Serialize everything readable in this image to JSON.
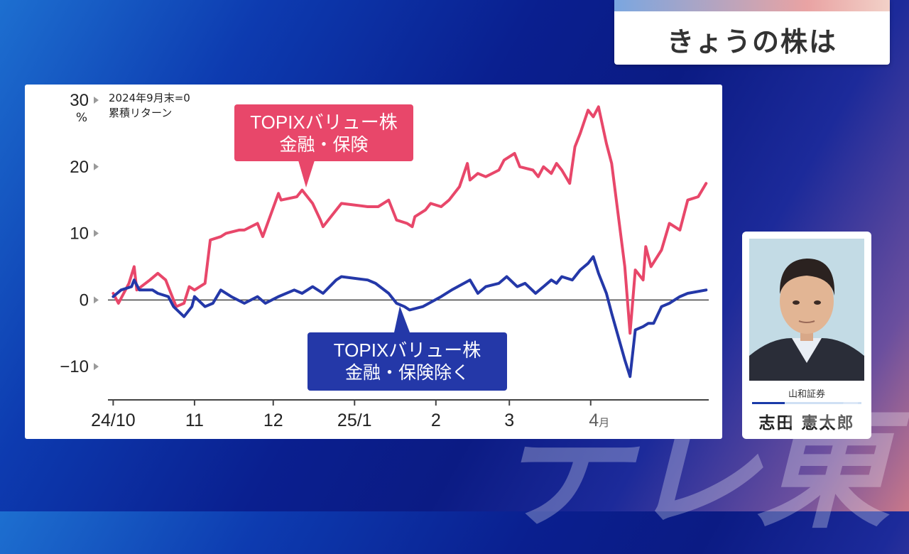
{
  "header": {
    "title": "きょうの株は"
  },
  "person": {
    "company": "山和証券",
    "name": "志田 憲太郎"
  },
  "watermark": "テレ東",
  "colors": {
    "value_financial": "#e8476a",
    "value_ex_financial": "#2438a8"
  },
  "chart_data": {
    "type": "line",
    "note_line1": "2024年9月末=0",
    "note_line2": "累積リターン",
    "y_unit": "%",
    "y_ticks": [
      "30",
      "20",
      "10",
      "0",
      "−10"
    ],
    "x_ticks": [
      "24/10",
      "11",
      "12",
      "25/1",
      "2",
      "3",
      "4月"
    ],
    "ylim": [
      -15,
      30
    ],
    "callout_red": {
      "line1": "TOPIXバリュー株",
      "line2": "金融・保険"
    },
    "callout_blue": {
      "line1": "TOPIXバリュー株",
      "line2": "金融・保険除く"
    },
    "series": [
      {
        "name": "TOPIXバリュー株 金融・保険",
        "points": [
          [
            "2024-10-01",
            1.0
          ],
          [
            "2024-10-03",
            -0.5
          ],
          [
            "2024-10-07",
            2.5
          ],
          [
            "2024-10-09",
            5.0
          ],
          [
            "2024-10-10",
            1.5
          ],
          [
            "2024-10-15",
            3.0
          ],
          [
            "2024-10-18",
            4.0
          ],
          [
            "2024-10-21",
            3.0
          ],
          [
            "2024-10-22",
            2.0
          ],
          [
            "2024-10-25",
            -1.0
          ],
          [
            "2024-10-28",
            -0.5
          ],
          [
            "2024-10-30",
            2.0
          ],
          [
            "2024-11-01",
            1.5
          ],
          [
            "2024-11-05",
            2.5
          ],
          [
            "2024-11-07",
            9.0
          ],
          [
            "2024-11-11",
            9.5
          ],
          [
            "2024-11-13",
            10.0
          ],
          [
            "2024-11-18",
            10.5
          ],
          [
            "2024-11-20",
            10.5
          ],
          [
            "2024-11-25",
            11.5
          ],
          [
            "2024-11-27",
            9.5
          ],
          [
            "2024-12-03",
            16.0
          ],
          [
            "2024-12-04",
            15.0
          ],
          [
            "2024-12-10",
            15.5
          ],
          [
            "2024-12-12",
            16.5
          ],
          [
            "2024-12-16",
            14.5
          ],
          [
            "2024-12-19",
            12.0
          ],
          [
            "2024-12-20",
            11.0
          ],
          [
            "2024-12-24",
            13.0
          ],
          [
            "2024-12-27",
            14.5
          ],
          [
            "2025-01-06",
            14.0
          ],
          [
            "2025-01-10",
            14.0
          ],
          [
            "2025-01-14",
            15.0
          ],
          [
            "2025-01-17",
            12.0
          ],
          [
            "2025-01-21",
            11.5
          ],
          [
            "2025-01-23",
            11.0
          ],
          [
            "2025-01-24",
            12.5
          ],
          [
            "2025-01-28",
            13.5
          ],
          [
            "2025-01-30",
            14.5
          ],
          [
            "2025-02-03",
            14.0
          ],
          [
            "2025-02-06",
            15.0
          ],
          [
            "2025-02-10",
            17.0
          ],
          [
            "2025-02-13",
            20.5
          ],
          [
            "2025-02-14",
            18.0
          ],
          [
            "2025-02-17",
            19.0
          ],
          [
            "2025-02-20",
            18.5
          ],
          [
            "2025-02-25",
            19.5
          ],
          [
            "2025-02-27",
            21.0
          ],
          [
            "2025-03-03",
            22.0
          ],
          [
            "2025-03-05",
            20.0
          ],
          [
            "2025-03-10",
            19.5
          ],
          [
            "2025-03-12",
            18.5
          ],
          [
            "2025-03-14",
            20.0
          ],
          [
            "2025-03-17",
            19.0
          ],
          [
            "2025-03-19",
            20.5
          ],
          [
            "2025-03-21",
            19.5
          ],
          [
            "2025-03-24",
            17.5
          ],
          [
            "2025-03-26",
            23.0
          ],
          [
            "2025-03-28",
            25.0
          ],
          [
            "2025-03-31",
            28.5
          ],
          [
            "2025-04-02",
            27.5
          ],
          [
            "2025-04-04",
            29.0
          ],
          [
            "2025-04-07",
            23.5
          ],
          [
            "2025-04-09",
            20.5
          ],
          [
            "2025-04-14",
            5.0
          ],
          [
            "2025-04-16",
            -5.0
          ],
          [
            "2025-04-18",
            4.5
          ],
          [
            "2025-04-21",
            3.0
          ],
          [
            "2025-04-22",
            8.0
          ],
          [
            "2025-04-24",
            5.0
          ],
          [
            "2025-04-28",
            7.5
          ],
          [
            "2025-05-01",
            11.5
          ],
          [
            "2025-05-05",
            10.5
          ],
          [
            "2025-05-08",
            15.0
          ],
          [
            "2025-05-12",
            15.5
          ],
          [
            "2025-05-15",
            17.5
          ]
        ]
      },
      {
        "name": "TOPIXバリュー株 金融・保険除く",
        "points": [
          [
            "2024-10-01",
            0.5
          ],
          [
            "2024-10-04",
            1.5
          ],
          [
            "2024-10-08",
            2.0
          ],
          [
            "2024-10-09",
            3.0
          ],
          [
            "2024-10-11",
            1.5
          ],
          [
            "2024-10-16",
            1.5
          ],
          [
            "2024-10-18",
            1.0
          ],
          [
            "2024-10-22",
            0.5
          ],
          [
            "2024-10-24",
            -1.0
          ],
          [
            "2024-10-28",
            -2.5
          ],
          [
            "2024-10-31",
            -1.0
          ],
          [
            "2024-11-01",
            0.5
          ],
          [
            "2024-11-05",
            -1.0
          ],
          [
            "2024-11-08",
            -0.5
          ],
          [
            "2024-11-11",
            1.5
          ],
          [
            "2024-11-15",
            0.5
          ],
          [
            "2024-11-20",
            -0.5
          ],
          [
            "2024-11-25",
            0.5
          ],
          [
            "2024-11-28",
            -0.5
          ],
          [
            "2024-12-03",
            0.5
          ],
          [
            "2024-12-09",
            1.5
          ],
          [
            "2024-12-12",
            1.0
          ],
          [
            "2024-12-16",
            2.0
          ],
          [
            "2024-12-20",
            1.0
          ],
          [
            "2024-12-25",
            3.0
          ],
          [
            "2024-12-27",
            3.5
          ],
          [
            "2025-01-06",
            3.0
          ],
          [
            "2025-01-09",
            2.5
          ],
          [
            "2025-01-14",
            1.0
          ],
          [
            "2025-01-17",
            -0.5
          ],
          [
            "2025-01-20",
            -1.0
          ],
          [
            "2025-01-22",
            -1.5
          ],
          [
            "2025-01-27",
            -1.0
          ],
          [
            "2025-02-03",
            0.5
          ],
          [
            "2025-02-07",
            1.5
          ],
          [
            "2025-02-14",
            3.0
          ],
          [
            "2025-02-17",
            1.0
          ],
          [
            "2025-02-20",
            2.0
          ],
          [
            "2025-02-25",
            2.5
          ],
          [
            "2025-02-28",
            3.5
          ],
          [
            "2025-03-04",
            2.0
          ],
          [
            "2025-03-07",
            2.5
          ],
          [
            "2025-03-11",
            1.0
          ],
          [
            "2025-03-14",
            2.0
          ],
          [
            "2025-03-17",
            3.0
          ],
          [
            "2025-03-19",
            2.5
          ],
          [
            "2025-03-21",
            3.5
          ],
          [
            "2025-03-25",
            3.0
          ],
          [
            "2025-03-28",
            4.5
          ],
          [
            "2025-03-31",
            5.5
          ],
          [
            "2025-04-02",
            6.5
          ],
          [
            "2025-04-04",
            4.0
          ],
          [
            "2025-04-07",
            1.0
          ],
          [
            "2025-04-09",
            -2.0
          ],
          [
            "2025-04-14",
            -9.0
          ],
          [
            "2025-04-16",
            -11.5
          ],
          [
            "2025-04-18",
            -4.5
          ],
          [
            "2025-04-21",
            -4.0
          ],
          [
            "2025-04-23",
            -3.5
          ],
          [
            "2025-04-25",
            -3.5
          ],
          [
            "2025-04-28",
            -1.0
          ],
          [
            "2025-05-01",
            -0.5
          ],
          [
            "2025-05-05",
            0.5
          ],
          [
            "2025-05-08",
            1.0
          ],
          [
            "2025-05-15",
            1.5
          ]
        ]
      }
    ]
  }
}
